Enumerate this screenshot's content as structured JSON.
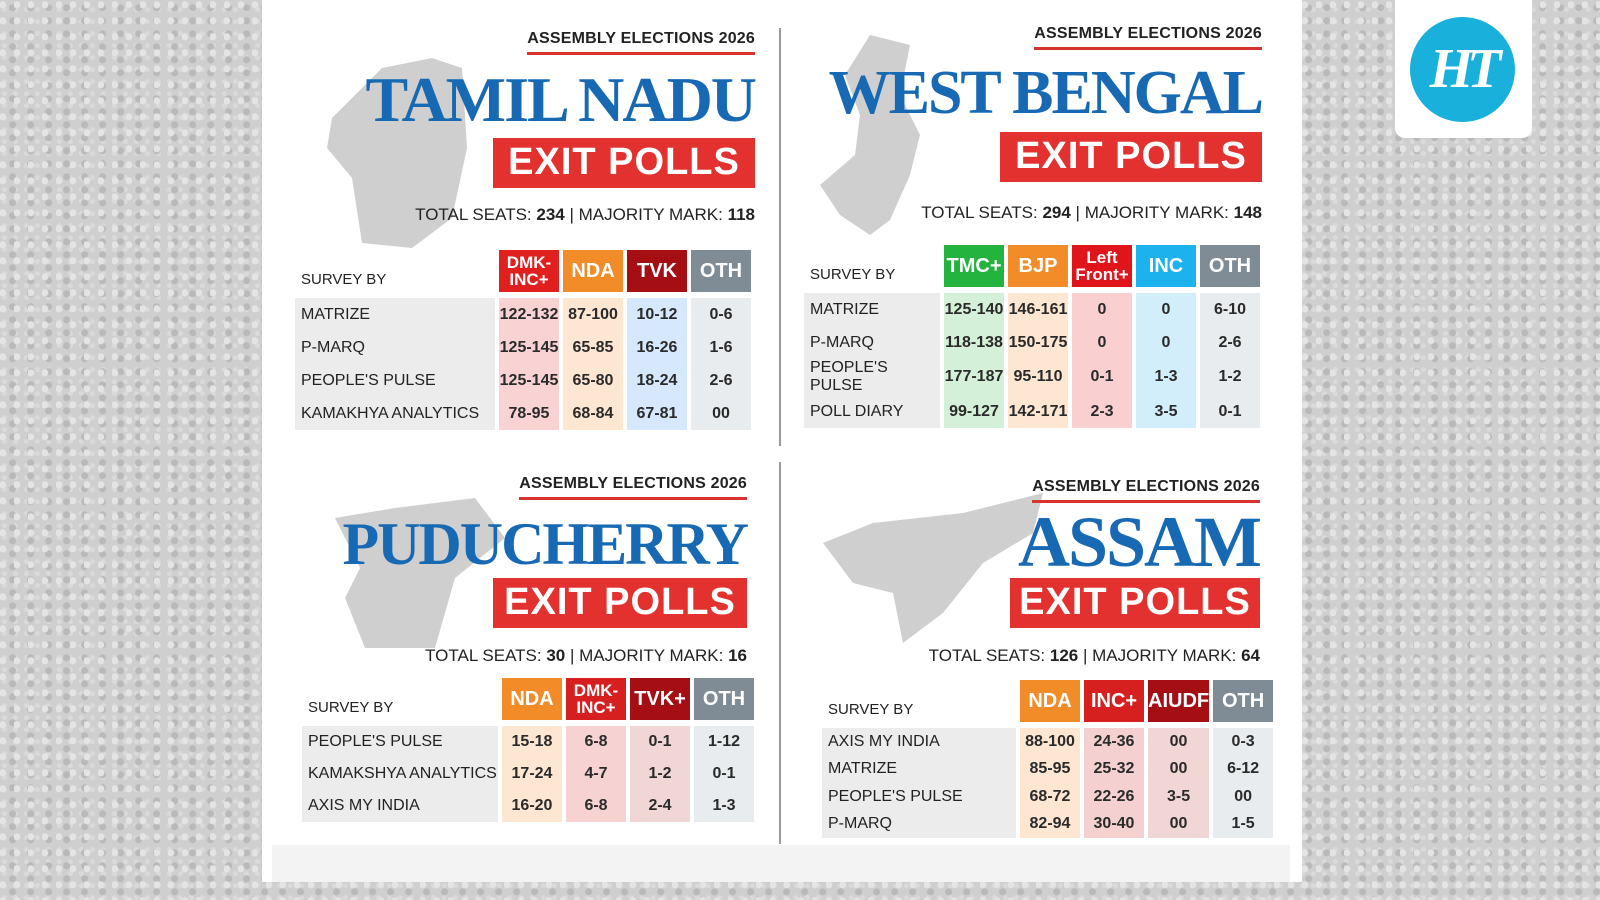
{
  "logo": {
    "text": "HT",
    "color": "#1ab0dc"
  },
  "panels": [
    {
      "key": "tamil-nadu",
      "header": "ASSEMBLY ELECTIONS 2026",
      "title": "TAMIL NADU",
      "badge": "EXIT POLLS",
      "total_label": "TOTAL SEATS:",
      "total": "234",
      "majority_label": "MAJORITY MARK:",
      "majority": "118",
      "survey_label": "SURVEY BY",
      "columns": [
        {
          "label": "DMK-\nINC+",
          "color": "#e01f1f",
          "tint": "#f9d3d3"
        },
        {
          "label": "NDA",
          "color": "#f28c28",
          "tint": "#fde6d2"
        },
        {
          "label": "TVK",
          "color": "#a50f14",
          "tint": "#d6e8fb"
        },
        {
          "label": "OTH",
          "color": "#7f8c96",
          "tint": "#e8ecef"
        }
      ],
      "rows": [
        [
          "MATRIZE",
          "122-132",
          "87-100",
          "10-12",
          "0-6"
        ],
        [
          "P-MARQ",
          "125-145",
          "65-85",
          "16-26",
          "1-6"
        ],
        [
          "PEOPLE'S PULSE",
          "125-145",
          "65-80",
          "18-24",
          "2-6"
        ],
        [
          "KAMAKHYA ANALYTICS",
          "78-95",
          "68-84",
          "67-81",
          "00"
        ]
      ]
    },
    {
      "key": "west-bengal",
      "header": "ASSEMBLY ELECTIONS 2026",
      "title": "WEST BENGAL",
      "badge": "EXIT POLLS",
      "total_label": "TOTAL SEATS:",
      "total": "294",
      "majority_label": "MAJORITY MARK:",
      "majority": "148",
      "survey_label": "SURVEY BY",
      "columns": [
        {
          "label": "TMC+",
          "color": "#24b33e",
          "tint": "#d5f0d9"
        },
        {
          "label": "BJP",
          "color": "#f28c28",
          "tint": "#fde6d2"
        },
        {
          "label": "Left\nFront+",
          "color": "#e0141b",
          "tint": "#f9cfcf"
        },
        {
          "label": "INC",
          "color": "#1cb2ee",
          "tint": "#d3eefb"
        },
        {
          "label": "OTH",
          "color": "#7f8c96",
          "tint": "#e8ecef"
        }
      ],
      "rows": [
        [
          "MATRIZE",
          "125-140",
          "146-161",
          "0",
          "0",
          "6-10"
        ],
        [
          "P-MARQ",
          "118-138",
          "150-175",
          "0",
          "0",
          "2-6"
        ],
        [
          "PEOPLE'S PULSE",
          "177-187",
          "95-110",
          "0-1",
          "1-3",
          "1-2"
        ],
        [
          "POLL DIARY",
          "99-127",
          "142-171",
          "2-3",
          "3-5",
          "0-1"
        ]
      ]
    },
    {
      "key": "puducherry",
      "header": "ASSEMBLY ELECTIONS 2026",
      "title": "PUDUCHERRY",
      "badge": "EXIT POLLS",
      "total_label": "TOTAL SEATS:",
      "total": "30",
      "majority_label": "MAJORITY MARK:",
      "majority": "16",
      "survey_label": "SURVEY BY",
      "columns": [
        {
          "label": "NDA",
          "color": "#f28c28",
          "tint": "#fde6d2"
        },
        {
          "label": "DMK-\nINC+",
          "color": "#d61f1f",
          "tint": "#f6d2d2"
        },
        {
          "label": "TVK+",
          "color": "#a50f14",
          "tint": "#f1d6d6"
        },
        {
          "label": "OTH",
          "color": "#7f8c96",
          "tint": "#e8ecef"
        }
      ],
      "rows": [
        [
          "PEOPLE'S PULSE",
          "15-18",
          "6-8",
          "0-1",
          "1-12"
        ],
        [
          "KAMAKSHYA ANALYTICS",
          "17-24",
          "4-7",
          "1-2",
          "0-1"
        ],
        [
          "AXIS MY INDIA",
          "16-20",
          "6-8",
          "2-4",
          "1-3"
        ]
      ]
    },
    {
      "key": "assam",
      "header": "ASSEMBLY ELECTIONS 2026",
      "title": "ASSAM",
      "badge": "EXIT POLLS",
      "total_label": "TOTAL SEATS:",
      "total": "126",
      "majority_label": "MAJORITY MARK:",
      "majority": "64",
      "survey_label": "SURVEY BY",
      "columns": [
        {
          "label": "NDA",
          "color": "#f28c28",
          "tint": "#fde6d2"
        },
        {
          "label": "INC+",
          "color": "#d61f1f",
          "tint": "#f4d0d0"
        },
        {
          "label": "AIUDF",
          "color": "#a50f14",
          "tint": "#f1d6d6"
        },
        {
          "label": "OTH",
          "color": "#7f8c96",
          "tint": "#e8ecef"
        }
      ],
      "rows": [
        [
          "AXIS MY INDIA",
          "88-100",
          "24-36",
          "00",
          "0-3"
        ],
        [
          "MATRIZE",
          "85-95",
          "25-32",
          "00",
          "6-12"
        ],
        [
          "PEOPLE'S PULSE",
          "68-72",
          "22-26",
          "3-5",
          "00"
        ],
        [
          "P-MARQ",
          "82-94",
          "30-40",
          "00",
          "1-5"
        ]
      ]
    }
  ]
}
